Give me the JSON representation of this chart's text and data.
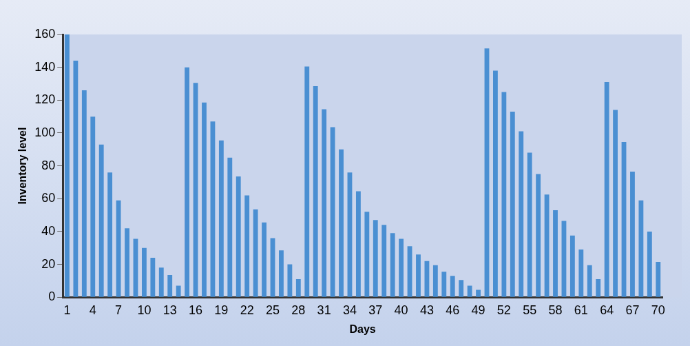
{
  "chart_data": {
    "type": "bar",
    "xlabel": "Days",
    "ylabel": "Inventory level",
    "categories": [
      "1",
      null,
      null,
      "4",
      null,
      null,
      "7",
      null,
      null,
      "10",
      null,
      null,
      "13",
      null,
      null,
      "16",
      null,
      null,
      "19",
      null,
      null,
      "22",
      null,
      null,
      "25",
      null,
      null,
      "28",
      null,
      null,
      "31",
      null,
      null,
      "34",
      null,
      null,
      "37",
      null,
      null,
      "40",
      null,
      null,
      "43",
      null,
      null,
      "46",
      null,
      null,
      "49",
      null,
      null,
      "52",
      null,
      null,
      "55",
      null,
      null,
      "58",
      null,
      null,
      "61",
      null,
      null,
      "64",
      null,
      null,
      "67",
      null,
      null,
      "70"
    ],
    "values": [
      160,
      144,
      126,
      110,
      93,
      76,
      59,
      42,
      35.5,
      30,
      24,
      18,
      13.5,
      7,
      140,
      130.5,
      118.5,
      107,
      95.5,
      85,
      73.5,
      62,
      53.5,
      45.5,
      36,
      28.5,
      20,
      11,
      140.5,
      128.5,
      114.5,
      103.5,
      90,
      76,
      64.5,
      52,
      47,
      44,
      39,
      35.5,
      31,
      26,
      22,
      19.5,
      15.5,
      13,
      10.5,
      7,
      4.5,
      151.5,
      138,
      125,
      113,
      101,
      88,
      75,
      62.5,
      53,
      46.5,
      37.5,
      29,
      19.5,
      11,
      131,
      114,
      94.5,
      76.5,
      59,
      40,
      21.5
    ],
    "color": "#4a8fd2",
    "ylim": [
      0,
      160
    ],
    "yticks": [
      0,
      20,
      40,
      60,
      80,
      100,
      120,
      140,
      160
    ],
    "grid": false,
    "legend": false
  }
}
